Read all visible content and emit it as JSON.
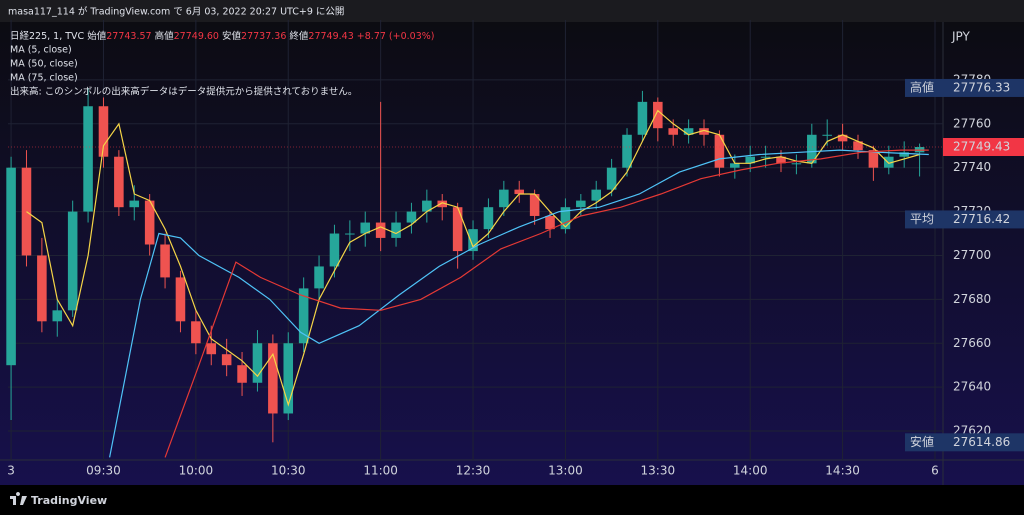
{
  "header": "masa117_114 が TradingView.com で 6月 03, 2022 20:27 UTC+9 に公開",
  "footer_brand": "TradingView",
  "chart_data": {
    "type": "candlestick",
    "title": "日経225, 1, TVC",
    "ohlc": [
      {
        "name": "始値",
        "value": "27743.57"
      },
      {
        "name": "高値",
        "value": "27749.60"
      },
      {
        "name": "安値",
        "value": "27737.36"
      },
      {
        "name": "終値",
        "value": "27749.43"
      }
    ],
    "change": "+8.77 (+0.03%)",
    "note": "出来高: このシンボルの出来高データはデータ提供元から提供されておりません。",
    "y_unit": "JPY",
    "up_color": "#26a69a",
    "down_color": "#ef5350",
    "grid": true,
    "xlim": [
      -1,
      302.6
    ],
    "ylim": [
      27606.8,
      27807.3
    ],
    "xticks": [
      {
        "value": 0,
        "label": "3"
      },
      {
        "value": 30,
        "label": "09:30"
      },
      {
        "value": 60,
        "label": "10:00"
      },
      {
        "value": 90,
        "label": "10:30"
      },
      {
        "value": 120,
        "label": "11:00"
      },
      {
        "value": 150,
        "label": "12:30"
      },
      {
        "value": 180,
        "label": "13:00"
      },
      {
        "value": 210,
        "label": "13:30"
      },
      {
        "value": 240,
        "label": "14:00"
      },
      {
        "value": 270,
        "label": "14:30"
      },
      {
        "value": 300,
        "label": "6"
      }
    ],
    "yticks": [
      27620,
      27640,
      27660,
      27680,
      27700,
      27720,
      27740,
      27760,
      27780
    ],
    "x": [
      0,
      5,
      10,
      15,
      20,
      25,
      30,
      35,
      40,
      45,
      50,
      55,
      60,
      65,
      70,
      75,
      80,
      85,
      90,
      95,
      100,
      105,
      110,
      115,
      120,
      125,
      130,
      135,
      140,
      145,
      150,
      155,
      160,
      165,
      170,
      175,
      180,
      185,
      190,
      195,
      200,
      205,
      210,
      215,
      220,
      225,
      230,
      235,
      240,
      245,
      250,
      255,
      260,
      265,
      270,
      275,
      280,
      285,
      290,
      295
    ],
    "open": [
      27650,
      27740,
      27700,
      27670,
      27675,
      27720,
      27768,
      27745,
      27722,
      27725,
      27705,
      27690,
      27670,
      27660,
      27655,
      27650,
      27642,
      27660,
      27628,
      27660,
      27685,
      27695,
      27710,
      27710,
      27715,
      27708,
      27715,
      27720,
      27725,
      27722,
      27702,
      27712,
      27722,
      27730,
      27728,
      27718,
      27712,
      27722,
      27725,
      27730,
      27740,
      27755,
      27770,
      27758,
      27755,
      27758,
      27755,
      27740,
      27742,
      27745,
      27745,
      27742,
      27742,
      27755,
      27755,
      27752,
      27748,
      27740,
      27745,
      27747
    ],
    "high": [
      27745,
      27748,
      27708,
      27680,
      27725,
      27776.33,
      27772,
      27748,
      27732,
      27728,
      27710,
      27693,
      27675,
      27668,
      27662,
      27656,
      27666,
      27664,
      27665,
      27690,
      27700,
      27714,
      27716,
      27720,
      27770,
      27720,
      27724,
      27730,
      27728,
      27724,
      27716,
      27726,
      27734,
      27734,
      27730,
      27720,
      27726,
      27728,
      27734,
      27744,
      27758,
      27775,
      27772,
      27762,
      27762,
      27762,
      27757,
      27746,
      27750,
      27750,
      27748,
      27746,
      27760,
      27762,
      27760,
      27755,
      27750,
      27750,
      27752,
      27751
    ],
    "low": [
      27625,
      27695,
      27665,
      27663,
      27672,
      27715,
      27740,
      27718,
      27716,
      27700,
      27685,
      27665,
      27655,
      27650,
      27645,
      27636,
      27638,
      27614.86,
      27625,
      27656,
      27680,
      27690,
      27702,
      27704,
      27702,
      27704,
      27710,
      27715,
      27716,
      27694,
      27698,
      27708,
      27718,
      27724,
      27714,
      27708,
      27710,
      27718,
      27721,
      27727,
      27736,
      27752,
      27752,
      27750,
      27751,
      27750,
      27736,
      27735,
      27738,
      27740,
      27738,
      27737,
      27740,
      27750,
      27748,
      27744,
      27734,
      27737,
      27740,
      27736
    ],
    "close": [
      27740,
      27700,
      27670,
      27675,
      27720,
      27768,
      27745,
      27722,
      27725,
      27705,
      27690,
      27670,
      27660,
      27655,
      27650,
      27642,
      27660,
      27628,
      27660,
      27685,
      27695,
      27710,
      27710,
      27715,
      27708,
      27715,
      27720,
      27725,
      27722,
      27702,
      27712,
      27722,
      27730,
      27728,
      27718,
      27712,
      27722,
      27725,
      27730,
      27740,
      27755,
      27770,
      27758,
      27755,
      27758,
      27755,
      27740,
      27742,
      27745,
      27745,
      27742,
      27742,
      27755,
      27755,
      27752,
      27748,
      27740,
      27745,
      27747,
      27749.43
    ],
    "series": [
      {
        "name": "MA (5, close)",
        "color": "#f5d547",
        "x": [
          5,
          10,
          15,
          20,
          25,
          30,
          35,
          40,
          45,
          50,
          55,
          60,
          65,
          70,
          75,
          80,
          85,
          90,
          95,
          100,
          105,
          110,
          115,
          120,
          125,
          130,
          135,
          140,
          145,
          150,
          155,
          160,
          165,
          170,
          175,
          180,
          185,
          190,
          195,
          200,
          205,
          210,
          215,
          220,
          225,
          230,
          235,
          240,
          245,
          250,
          255,
          260,
          265,
          270,
          275,
          280,
          285,
          290,
          295
        ],
        "values": [
          27720,
          27715,
          27680,
          27668,
          27700,
          27750,
          27760,
          27728,
          27725,
          27712,
          27695,
          27675,
          27662,
          27657,
          27652,
          27645,
          27655,
          27632,
          27655,
          27680,
          27693,
          27706,
          27710,
          27713,
          27710,
          27714,
          27720,
          27724,
          27722,
          27704,
          27710,
          27720,
          27728,
          27728,
          27720,
          27713,
          27720,
          27724,
          27729,
          27738,
          27752,
          27766,
          27760,
          27755,
          27757,
          27755,
          27742,
          27742,
          27744,
          27745,
          27743,
          27742,
          27752,
          27755,
          27752,
          27749,
          27742,
          27744,
          27746
        ]
      },
      {
        "name": "MA (50, close)",
        "color": "#4fc3f7",
        "x": [
          32,
          42,
          48,
          55,
          61,
          74,
          84,
          94,
          100,
          113,
          126,
          139,
          152,
          165,
          178,
          191,
          204,
          217,
          230,
          243,
          256,
          269,
          282,
          298
        ],
        "values": [
          27608,
          27680,
          27710,
          27708,
          27700,
          27690,
          27680,
          27665,
          27660,
          27668,
          27682,
          27695,
          27705,
          27713,
          27720,
          27722,
          27728,
          27738,
          27744,
          27746,
          27747,
          27748,
          27747,
          27746
        ]
      },
      {
        "name": "MA (75, close)",
        "color": "#e53935",
        "x": [
          50,
          61,
          73,
          81,
          94,
          107,
          120,
          133,
          146,
          159,
          172,
          185,
          198,
          211,
          224,
          237,
          249,
          263,
          276,
          289,
          298
        ],
        "values": [
          27608,
          27650,
          27697,
          27690,
          27682,
          27676,
          27675,
          27680,
          27690,
          27703,
          27710,
          27718,
          27722,
          27728,
          27735,
          27739,
          27742,
          27744,
          27747,
          27748,
          27748
        ]
      }
    ],
    "price_labels": [
      {
        "label": "高値",
        "value": 27776.33
      },
      {
        "label": "平均",
        "value": 27716.42
      },
      {
        "label": "安値",
        "value": 27614.86
      }
    ],
    "last_price": 27749.43
  }
}
